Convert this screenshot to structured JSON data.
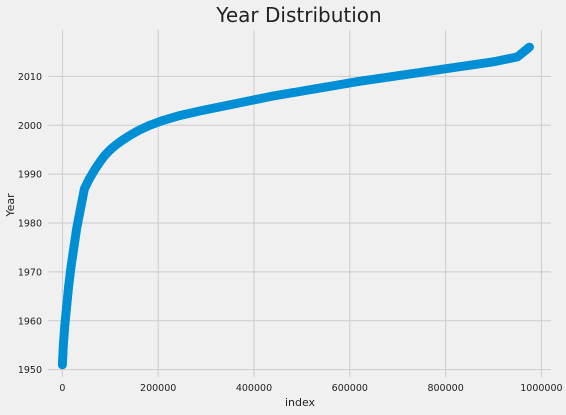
{
  "chart_data": {
    "type": "scatter",
    "title": "Year Distribution",
    "xlabel": "index",
    "ylabel": "Year",
    "xlim": [
      -30000,
      1020000
    ],
    "ylim": [
      1948.5,
      2019.5
    ],
    "xticks": [
      0,
      200000,
      400000,
      600000,
      800000,
      1000000
    ],
    "yticks": [
      1950,
      1960,
      1970,
      1980,
      1990,
      2000,
      2010
    ],
    "xtick_labels": [
      "0",
      "200000",
      "400000",
      "600000",
      "800000",
      "1000000"
    ],
    "ytick_labels": [
      "1950",
      "1960",
      "1970",
      "1980",
      "1990",
      "2000",
      "2010"
    ],
    "grid": true,
    "marker_color": "#008fd5",
    "series": [
      {
        "x": [
          0,
          1000,
          2000,
          3500,
          5000,
          7000,
          9000,
          11000,
          13000,
          15500,
          18000,
          21000,
          24000,
          27000,
          30000,
          34000,
          38000,
          42000,
          46000,
          51000,
          56000,
          62000,
          68000,
          75000,
          82000,
          90000,
          100000,
          112000,
          126000,
          142000,
          160000,
          182000,
          210000,
          245000,
          290000,
          340000,
          390000,
          440000,
          500000,
          560000,
          620000,
          690000,
          760000,
          830000,
          900000,
          950000,
          975000
        ],
        "y": [
          1951,
          1953,
          1955,
          1957,
          1959,
          1961,
          1963,
          1965,
          1967,
          1969,
          1971,
          1973,
          1975,
          1977,
          1979,
          1981,
          1983,
          1985,
          1987,
          1988,
          1989,
          1990,
          1991,
          1992,
          1993,
          1994,
          1995,
          1996,
          1997,
          1998,
          1999,
          2000,
          2001,
          2002,
          2003,
          2004,
          2005,
          2006,
          2007,
          2008,
          2009,
          2010,
          2011,
          2012,
          2013,
          2014,
          2016
        ]
      }
    ]
  }
}
